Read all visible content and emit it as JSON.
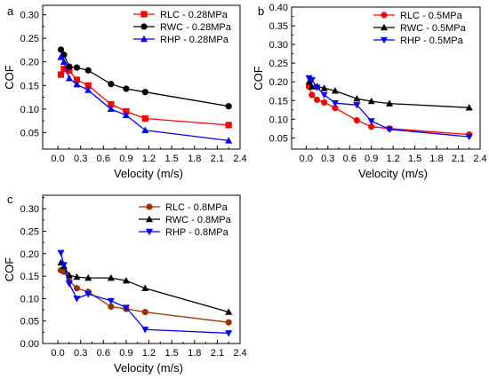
{
  "chart_data": [
    {
      "type": "line",
      "panel_label": "a",
      "xlabel": "Velocity (m/s)",
      "ylabel": "COF",
      "xlim": [
        -0.2,
        2.4
      ],
      "ylim": [
        0.015,
        0.32
      ],
      "xticks": [
        "0.0",
        "0.3",
        "0.6",
        "0.9",
        "1.2",
        "1.5",
        "1.8",
        "2.1",
        "2.4"
      ],
      "yticks": [
        "0.05",
        "0.10",
        "0.15",
        "0.20",
        "0.25",
        "0.30"
      ],
      "grid": false,
      "legend_position": "top-right",
      "series": [
        {
          "name": "RLC - 0.28MPa",
          "color": "#ff0000",
          "marker": "square",
          "x": [
            0.04,
            0.08,
            0.15,
            0.25,
            0.4,
            0.7,
            0.9,
            1.15,
            2.25
          ],
          "y": [
            0.173,
            0.185,
            0.182,
            0.162,
            0.15,
            0.11,
            0.095,
            0.08,
            0.066
          ]
        },
        {
          "name": "RWC - 0.28MPa",
          "color": "#000000",
          "marker": "circle",
          "x": [
            0.04,
            0.08,
            0.15,
            0.25,
            0.4,
            0.7,
            0.9,
            1.15,
            2.25
          ],
          "y": [
            0.226,
            0.215,
            0.19,
            0.188,
            0.182,
            0.153,
            0.143,
            0.136,
            0.106
          ]
        },
        {
          "name": "RHP - 0.28MPa",
          "color": "#0000ff",
          "marker": "triangle-up",
          "x": [
            0.04,
            0.08,
            0.15,
            0.25,
            0.4,
            0.7,
            0.9,
            1.15,
            2.25
          ],
          "y": [
            0.21,
            0.2,
            0.165,
            0.152,
            0.14,
            0.1,
            0.087,
            0.055,
            0.033
          ]
        }
      ]
    },
    {
      "type": "line",
      "panel_label": "b",
      "xlabel": "Velocity (m/s)",
      "ylabel": "COF",
      "xlim": [
        -0.2,
        2.4
      ],
      "ylim": [
        0.02,
        0.4
      ],
      "xticks": [
        "0.0",
        "0.3",
        "0.6",
        "0.9",
        "1.2",
        "1.5",
        "1.8",
        "2.1",
        "2.4"
      ],
      "yticks": [
        "0.05",
        "0.10",
        "0.15",
        "0.20",
        "0.25",
        "0.30",
        "0.35",
        "0.40"
      ],
      "grid": false,
      "legend_position": "top-right",
      "series": [
        {
          "name": "RLC - 0.5MPa",
          "color": "#ff0000",
          "marker": "circle",
          "x": [
            0.04,
            0.08,
            0.15,
            0.25,
            0.4,
            0.7,
            0.9,
            1.15,
            2.25
          ],
          "y": [
            0.187,
            0.165,
            0.152,
            0.145,
            0.13,
            0.097,
            0.08,
            0.075,
            0.059
          ]
        },
        {
          "name": "RWC - 0.5MPa",
          "color": "#000000",
          "marker": "triangle-up",
          "x": [
            0.04,
            0.08,
            0.15,
            0.25,
            0.4,
            0.7,
            0.9,
            1.15,
            2.25
          ],
          "y": [
            0.2,
            0.187,
            0.188,
            0.183,
            0.176,
            0.155,
            0.148,
            0.142,
            0.131
          ]
        },
        {
          "name": "RHP - 0.5MPa",
          "color": "#0000ff",
          "marker": "triangle-down",
          "x": [
            0.04,
            0.08,
            0.15,
            0.25,
            0.4,
            0.7,
            0.9,
            1.15,
            2.25
          ],
          "y": [
            0.21,
            0.205,
            0.185,
            0.165,
            0.143,
            0.138,
            0.095,
            0.073,
            0.053
          ]
        }
      ]
    },
    {
      "type": "line",
      "panel_label": "c",
      "xlabel": "Velocity (m/s)",
      "ylabel": "COF",
      "xlim": [
        -0.2,
        2.4
      ],
      "ylim": [
        0.0,
        0.33
      ],
      "xticks": [
        "0.0",
        "0.3",
        "0.6",
        "0.9",
        "1.2",
        "1.5",
        "1.8",
        "2.1",
        "2.4"
      ],
      "yticks": [
        "0.00",
        "0.05",
        "0.10",
        "0.15",
        "0.20",
        "0.25",
        "0.30"
      ],
      "grid": false,
      "legend_position": "top-right",
      "series": [
        {
          "name": "RLC - 0.8MPa",
          "color": "#993300",
          "marker": "circle",
          "x": [
            0.04,
            0.08,
            0.15,
            0.25,
            0.4,
            0.7,
            0.9,
            1.15,
            2.25
          ],
          "y": [
            0.163,
            0.16,
            0.14,
            0.123,
            0.115,
            0.082,
            0.077,
            0.07,
            0.047
          ]
        },
        {
          "name": "RWC - 0.8MPa",
          "color": "#000000",
          "marker": "triangle-up",
          "x": [
            0.04,
            0.08,
            0.15,
            0.25,
            0.4,
            0.7,
            0.9,
            1.15,
            2.25
          ],
          "y": [
            0.18,
            0.172,
            0.152,
            0.148,
            0.146,
            0.146,
            0.14,
            0.123,
            0.07
          ]
        },
        {
          "name": "RHP - 0.8MPa",
          "color": "#0000ff",
          "marker": "triangle-down",
          "x": [
            0.04,
            0.08,
            0.15,
            0.25,
            0.4,
            0.7,
            0.9,
            1.15,
            2.25
          ],
          "y": [
            0.202,
            0.175,
            0.133,
            0.1,
            0.11,
            0.095,
            0.08,
            0.031,
            0.023
          ]
        }
      ]
    }
  ]
}
